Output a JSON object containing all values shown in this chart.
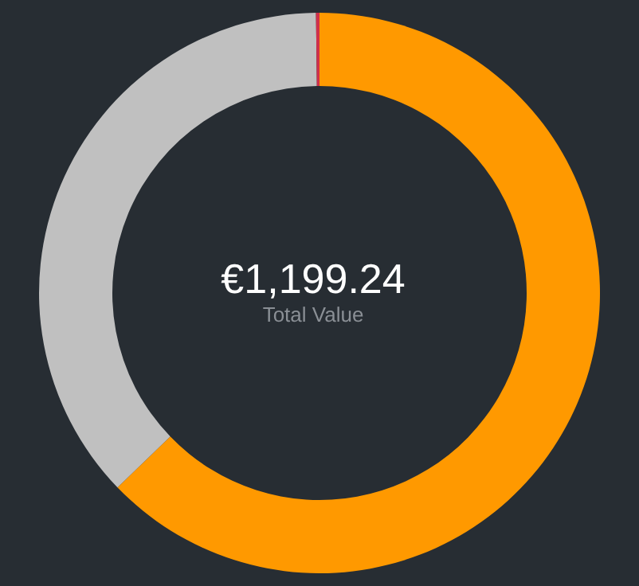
{
  "chart_data": {
    "type": "donut",
    "title": "€1,199.24",
    "subtitle": "Total Value",
    "categories": [
      null,
      null,
      null
    ],
    "values": [
      62.8,
      37.0,
      0.2
    ],
    "colors": [
      "#ff9900",
      "#c0c0c0",
      "#d0304a"
    ],
    "legend": false
  }
}
